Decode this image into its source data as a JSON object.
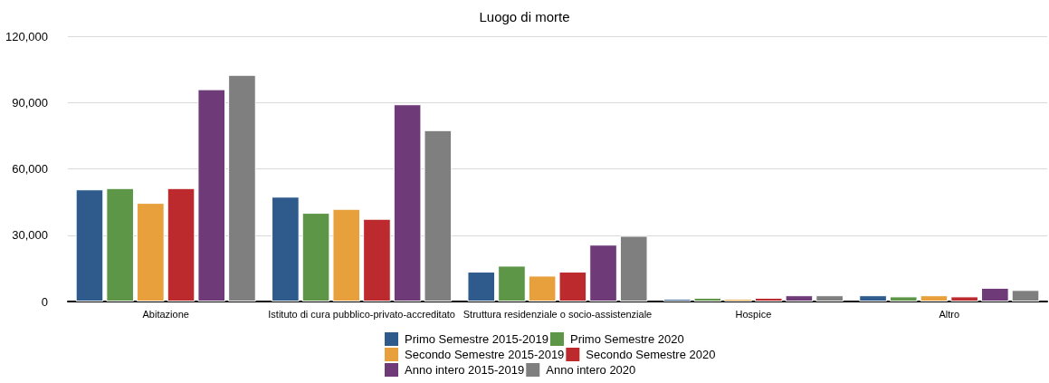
{
  "chart_data": {
    "type": "bar",
    "title": "Luogo di morte",
    "categories": [
      "Abitazione",
      "Istituto di cura pubblico-privato-accreditato",
      "Struttura residenziale o socio-assistenziale",
      "Hospice",
      "Altro"
    ],
    "series": [
      {
        "name": "Primo Semestre 2015-2019",
        "color": "#2e5a8c",
        "values": [
          50700,
          47400,
          13500,
          1200,
          2800
        ]
      },
      {
        "name": "Primo Semestre 2020",
        "color": "#5c9646",
        "values": [
          51300,
          40100,
          16200,
          1700,
          2300
        ]
      },
      {
        "name": "Secondo Semestre 2015-2019",
        "color": "#e8a03c",
        "values": [
          44600,
          41900,
          11700,
          1200,
          2800
        ]
      },
      {
        "name": "Secondo Semestre 2020",
        "color": "#bc2a2e",
        "values": [
          51300,
          37400,
          13500,
          1700,
          2300
        ]
      },
      {
        "name": "Anno intero 2015-2019",
        "color": "#6e3a78",
        "values": [
          96000,
          89200,
          25700,
          2800,
          6200
        ]
      },
      {
        "name": "Anno intero 2020",
        "color": "#7f7f7f",
        "values": [
          102500,
          77500,
          29700,
          2800,
          5200
        ]
      }
    ],
    "ylim": [
      0,
      120000
    ],
    "yticks": [
      0,
      {
        "value": 30000,
        "label": "30,000"
      },
      {
        "value": 60000,
        "label": "60,000"
      },
      {
        "value": 90000,
        "label": "90,000"
      },
      {
        "value": 120000,
        "label": "120,000"
      }
    ],
    "grid": "y",
    "legend": "bottom"
  }
}
